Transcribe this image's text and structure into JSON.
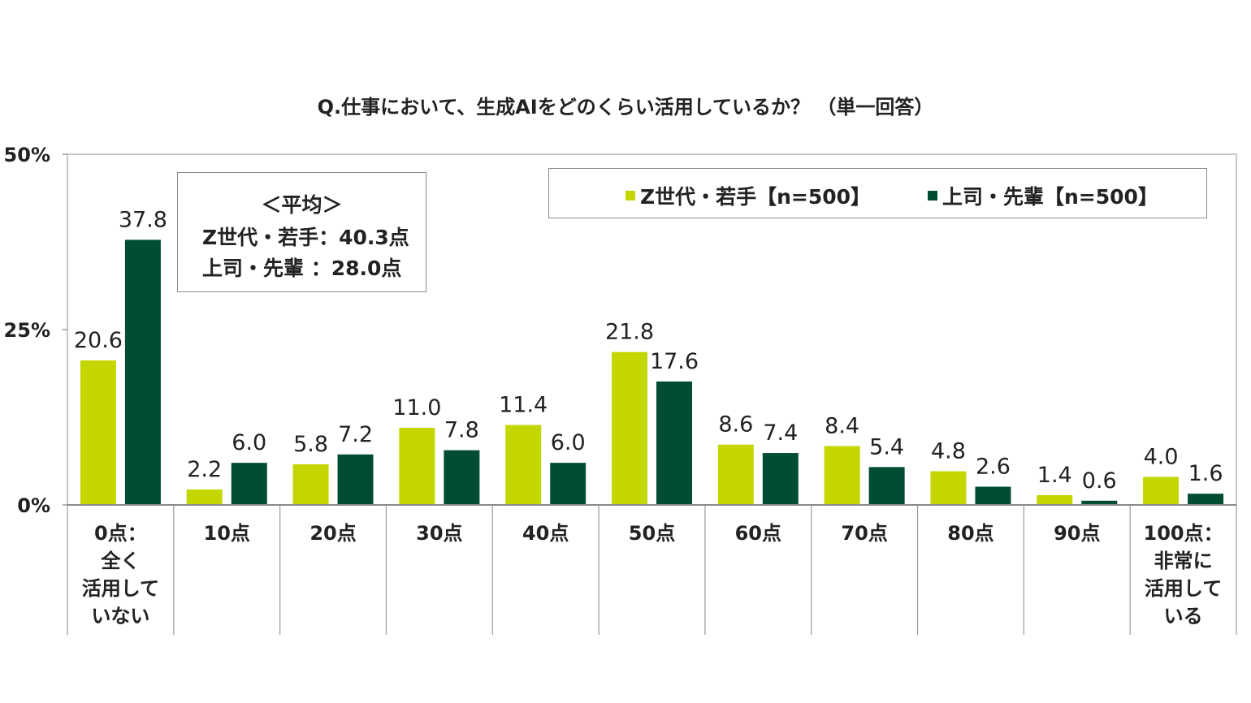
{
  "chart_data": {
    "type": "bar",
    "title": "Q.仕事において、生成AIをどのくらい活用しているか？ （単一回答）",
    "categories": [
      [
        "0点：",
        "全く",
        "活用して",
        "いない"
      ],
      [
        "10点"
      ],
      [
        "20点"
      ],
      [
        "30点"
      ],
      [
        "40点"
      ],
      [
        "50点"
      ],
      [
        "60点"
      ],
      [
        "70点"
      ],
      [
        "80点"
      ],
      [
        "90点"
      ],
      [
        "100点：",
        "非常に",
        "活用して",
        "いる"
      ]
    ],
    "series": [
      {
        "name": "Z世代・若手【n=500】",
        "color": "#c4d600",
        "values": [
          20.6,
          2.2,
          5.8,
          11.0,
          11.4,
          21.8,
          8.6,
          8.4,
          4.8,
          1.4,
          4.0
        ],
        "labels": [
          "20.6",
          "2.2",
          "5.8",
          "11.0",
          "11.4",
          "21.8",
          "8.6",
          "8.4",
          "4.8",
          "1.4",
          "4.0"
        ]
      },
      {
        "name": "上司・先輩【n=500】",
        "color": "#004d33",
        "values": [
          37.8,
          6.0,
          7.2,
          7.8,
          6.0,
          17.6,
          7.4,
          5.4,
          2.6,
          0.6,
          1.6
        ],
        "labels": [
          "37.8",
          "6.0",
          "7.2",
          "7.8",
          "6.0",
          "17.6",
          "7.4",
          "5.4",
          "2.6",
          "0.6",
          "1.6"
        ]
      }
    ],
    "ylim": [
      0,
      50
    ],
    "yticks": [
      0,
      25,
      50
    ],
    "ytick_labels": [
      "0%",
      "25%",
      "50%"
    ],
    "grid": false,
    "legend_position": "top-right"
  },
  "average_box": {
    "title": "＜平均＞",
    "row1": "Z世代・若手：40.3点",
    "row2": "上司・先輩 ：28.0点"
  },
  "legend": {
    "item1": "Z世代・若手【n=500】",
    "item2": "上司・先輩【n=500】"
  }
}
